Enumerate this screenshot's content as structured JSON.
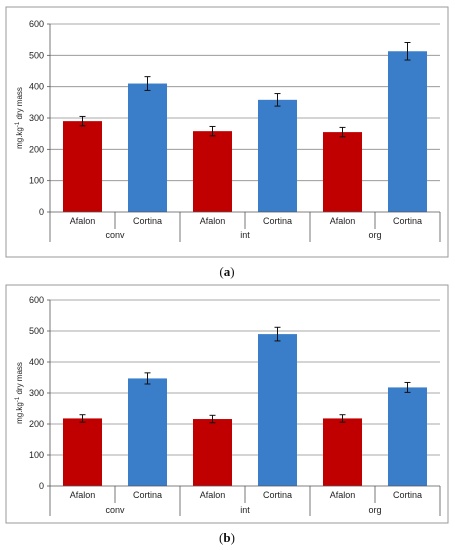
{
  "chart_data": [
    {
      "type": "bar",
      "caption_open": "(",
      "caption_letter": "a",
      "caption_close": ")",
      "groups": [
        "conv",
        "int",
        "org"
      ],
      "categories": [
        "Afalon",
        "Cortina",
        "Afalon",
        "Cortina",
        "Afalon",
        "Cortina"
      ],
      "values": [
        290,
        410,
        258,
        358,
        255,
        513
      ],
      "errors": [
        15,
        22,
        15,
        20,
        15,
        28
      ],
      "colors": [
        "#c00000",
        "#3a7dc9",
        "#c00000",
        "#3a7dc9",
        "#c00000",
        "#3a7dc9"
      ],
      "ylabel_prefix": "mg.kg",
      "ylabel_sup": "-1",
      "ylabel_suffix": " dry mass",
      "ylim": [
        0,
        600
      ],
      "yticks": [
        0,
        100,
        200,
        300,
        400,
        500,
        600
      ],
      "grid": true
    },
    {
      "type": "bar",
      "caption_open": "(",
      "caption_letter": "b",
      "caption_close": ")",
      "groups": [
        "conv",
        "int",
        "org"
      ],
      "categories": [
        "Afalon",
        "Cortina",
        "Afalon",
        "Cortina",
        "Afalon",
        "Cortina"
      ],
      "values": [
        218,
        347,
        216,
        490,
        218,
        318
      ],
      "errors": [
        12,
        18,
        12,
        22,
        12,
        16
      ],
      "colors": [
        "#c00000",
        "#3a7dc9",
        "#c00000",
        "#3a7dc9",
        "#c00000",
        "#3a7dc9"
      ],
      "ylabel_prefix": "mg.kg",
      "ylabel_sup": "-1",
      "ylabel_suffix": " dry mass",
      "ylim": [
        0,
        600
      ],
      "yticks": [
        0,
        100,
        200,
        300,
        400,
        500,
        600
      ],
      "grid": true
    }
  ]
}
